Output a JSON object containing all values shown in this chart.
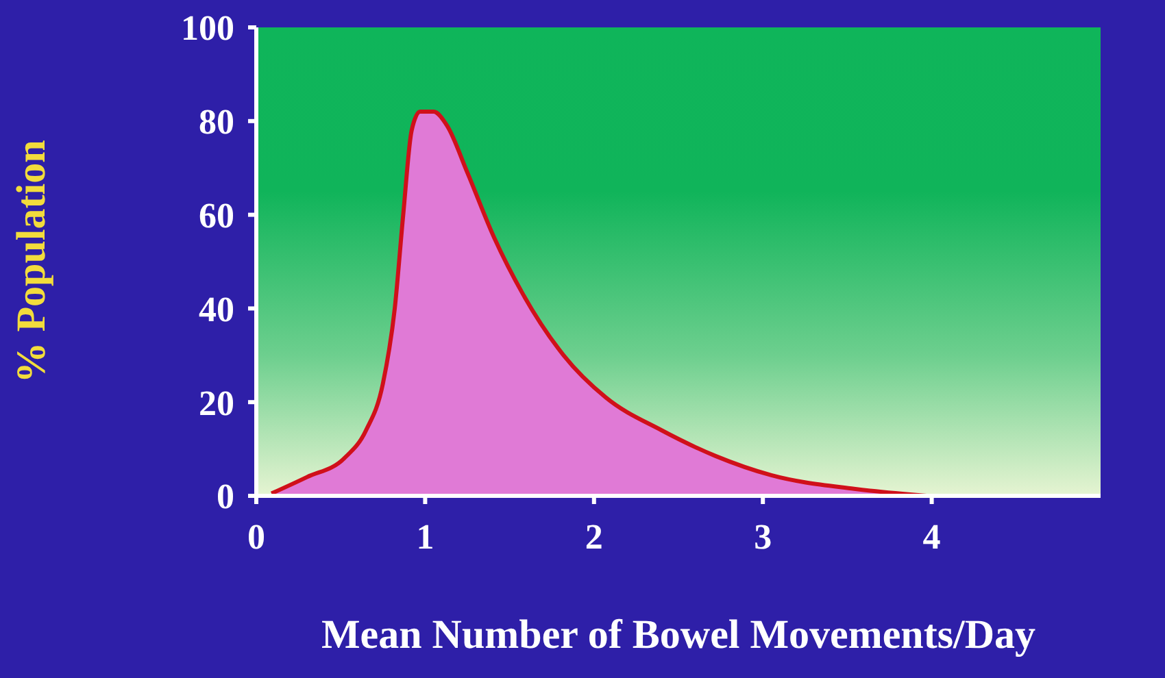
{
  "chart_data": {
    "type": "area",
    "xlabel": "Mean Number of Bowel Movements/Day",
    "ylabel": "% Population",
    "x": [
      0.09,
      0.3,
      0.52,
      0.65,
      0.75,
      0.82,
      0.87,
      0.92,
      0.97,
      1.05,
      1.13,
      1.25,
      1.41,
      1.58,
      1.82,
      2.07,
      2.4,
      2.72,
      3.05,
      3.54,
      3.97
    ],
    "series": [
      {
        "color": "#e07ad6",
        "values": [
          0.5,
          4,
          8,
          14,
          24,
          40,
          60,
          78,
          82,
          82,
          79,
          69,
          55,
          43,
          30,
          21,
          14,
          8.5,
          4.4,
          1.5,
          0
        ]
      }
    ],
    "xlim": [
      0,
      5
    ],
    "xticks": [
      0,
      1,
      2,
      3,
      4
    ],
    "ylim": [
      0,
      100
    ],
    "yticks": [
      0,
      20,
      40,
      60,
      80,
      100
    ],
    "grid": false
  }
}
